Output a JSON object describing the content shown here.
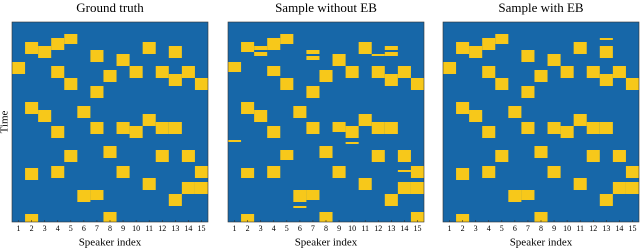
{
  "chart_data": [
    {
      "type": "gantt",
      "title": "Ground truth",
      "xlabel": "Speaker index",
      "ylabel": "Time",
      "xlim": [
        0.5,
        15.5
      ],
      "xticks": [
        1,
        2,
        3,
        4,
        5,
        6,
        7,
        8,
        9,
        10,
        11,
        12,
        13,
        14,
        15
      ],
      "ylim": [
        0,
        100
      ],
      "background": "#1767a8",
      "color": "#f7c81a",
      "segments": [
        [
          1,
          20,
          26
        ],
        [
          2,
          10,
          16
        ],
        [
          2,
          40,
          46
        ],
        [
          2,
          73,
          79
        ],
        [
          2,
          96,
          100
        ],
        [
          3,
          12,
          18
        ],
        [
          3,
          44,
          50
        ],
        [
          4,
          8,
          14
        ],
        [
          4,
          22,
          28
        ],
        [
          4,
          52,
          58
        ],
        [
          4,
          72,
          78
        ],
        [
          5,
          6,
          11
        ],
        [
          5,
          28,
          34
        ],
        [
          5,
          64,
          70
        ],
        [
          6,
          42,
          48
        ],
        [
          6,
          84,
          90
        ],
        [
          7,
          14,
          20
        ],
        [
          7,
          32,
          38
        ],
        [
          7,
          50,
          56
        ],
        [
          7,
          84,
          89
        ],
        [
          8,
          24,
          30
        ],
        [
          8,
          62,
          68
        ],
        [
          8,
          95,
          100
        ],
        [
          9,
          16,
          22
        ],
        [
          9,
          50,
          56
        ],
        [
          9,
          72,
          78
        ],
        [
          10,
          22,
          28
        ],
        [
          10,
          52,
          58
        ],
        [
          11,
          10,
          16
        ],
        [
          11,
          46,
          52
        ],
        [
          11,
          78,
          84
        ],
        [
          12,
          22,
          28
        ],
        [
          12,
          50,
          56
        ],
        [
          12,
          64,
          70
        ],
        [
          13,
          12,
          18
        ],
        [
          13,
          26,
          32
        ],
        [
          13,
          50,
          56
        ],
        [
          13,
          86,
          92
        ],
        [
          14,
          22,
          28
        ],
        [
          14,
          64,
          70
        ],
        [
          14,
          80,
          86
        ],
        [
          15,
          28,
          34
        ],
        [
          15,
          72,
          78
        ],
        [
          15,
          80,
          86
        ]
      ]
    },
    {
      "type": "gantt",
      "title": "Sample without EB",
      "xlabel": "Speaker index",
      "xlim": [
        0.5,
        15.5
      ],
      "xticks": [
        1,
        2,
        3,
        4,
        5,
        6,
        7,
        8,
        9,
        10,
        11,
        12,
        13,
        14,
        15
      ],
      "ylim": [
        0,
        100
      ],
      "background": "#1767a8",
      "color": "#f7c81a",
      "segments": [
        [
          1,
          20,
          25
        ],
        [
          1,
          59,
          60
        ],
        [
          2,
          10,
          15
        ],
        [
          2,
          40,
          46
        ],
        [
          2,
          73,
          78
        ],
        [
          2,
          96,
          100
        ],
        [
          3,
          12,
          14
        ],
        [
          3,
          15,
          17
        ],
        [
          3,
          44,
          50
        ],
        [
          4,
          8,
          14
        ],
        [
          4,
          22,
          27
        ],
        [
          4,
          52,
          58
        ],
        [
          4,
          72,
          78
        ],
        [
          5,
          6,
          11
        ],
        [
          5,
          28,
          34
        ],
        [
          5,
          64,
          69
        ],
        [
          6,
          42,
          48
        ],
        [
          6,
          84,
          90
        ],
        [
          6,
          92,
          93
        ],
        [
          7,
          14,
          16
        ],
        [
          7,
          17,
          19
        ],
        [
          7,
          32,
          38
        ],
        [
          7,
          50,
          56
        ],
        [
          7,
          84,
          89
        ],
        [
          8,
          24,
          30
        ],
        [
          8,
          62,
          68
        ],
        [
          8,
          95,
          100
        ],
        [
          9,
          16,
          22
        ],
        [
          9,
          50,
          55
        ],
        [
          9,
          72,
          78
        ],
        [
          10,
          22,
          28
        ],
        [
          10,
          52,
          58
        ],
        [
          10,
          60,
          61
        ],
        [
          11,
          10,
          16
        ],
        [
          11,
          46,
          52
        ],
        [
          11,
          78,
          84
        ],
        [
          12,
          16,
          17
        ],
        [
          12,
          22,
          28
        ],
        [
          12,
          50,
          56
        ],
        [
          12,
          64,
          70
        ],
        [
          13,
          12,
          14
        ],
        [
          13,
          15,
          17
        ],
        [
          13,
          26,
          32
        ],
        [
          13,
          50,
          56
        ],
        [
          13,
          86,
          92
        ],
        [
          14,
          22,
          28
        ],
        [
          14,
          64,
          70
        ],
        [
          14,
          74,
          75
        ],
        [
          14,
          80,
          86
        ],
        [
          15,
          28,
          34
        ],
        [
          15,
          72,
          78
        ],
        [
          15,
          80,
          86
        ],
        [
          15,
          95,
          100
        ]
      ]
    },
    {
      "type": "gantt",
      "title": "Sample with EB",
      "xlabel": "Speaker index",
      "xlim": [
        0.5,
        15.5
      ],
      "xticks": [
        1,
        2,
        3,
        4,
        5,
        6,
        7,
        8,
        9,
        10,
        11,
        12,
        13,
        14,
        15
      ],
      "ylim": [
        0,
        100
      ],
      "background": "#1767a8",
      "color": "#f7c81a",
      "segments": [
        [
          1,
          20,
          26
        ],
        [
          2,
          10,
          16
        ],
        [
          2,
          40,
          46
        ],
        [
          2,
          73,
          79
        ],
        [
          2,
          96,
          100
        ],
        [
          3,
          12,
          18
        ],
        [
          3,
          44,
          50
        ],
        [
          4,
          8,
          14
        ],
        [
          4,
          22,
          28
        ],
        [
          4,
          52,
          58
        ],
        [
          4,
          72,
          78
        ],
        [
          5,
          6,
          11
        ],
        [
          5,
          28,
          34
        ],
        [
          5,
          64,
          70
        ],
        [
          6,
          42,
          48
        ],
        [
          6,
          84,
          90
        ],
        [
          7,
          14,
          20
        ],
        [
          7,
          32,
          38
        ],
        [
          7,
          50,
          56
        ],
        [
          7,
          84,
          89
        ],
        [
          8,
          24,
          30
        ],
        [
          8,
          62,
          68
        ],
        [
          8,
          95,
          100
        ],
        [
          9,
          16,
          22
        ],
        [
          9,
          50,
          56
        ],
        [
          9,
          72,
          78
        ],
        [
          10,
          22,
          28
        ],
        [
          10,
          52,
          58
        ],
        [
          11,
          10,
          16
        ],
        [
          11,
          46,
          52
        ],
        [
          11,
          78,
          84
        ],
        [
          12,
          22,
          28
        ],
        [
          12,
          50,
          56
        ],
        [
          12,
          64,
          70
        ],
        [
          13,
          8,
          9
        ],
        [
          13,
          12,
          18
        ],
        [
          13,
          26,
          32
        ],
        [
          13,
          50,
          56
        ],
        [
          13,
          86,
          92
        ],
        [
          14,
          22,
          28
        ],
        [
          14,
          64,
          70
        ],
        [
          14,
          80,
          86
        ],
        [
          15,
          28,
          34
        ],
        [
          15,
          72,
          78
        ],
        [
          15,
          80,
          86
        ]
      ]
    }
  ]
}
